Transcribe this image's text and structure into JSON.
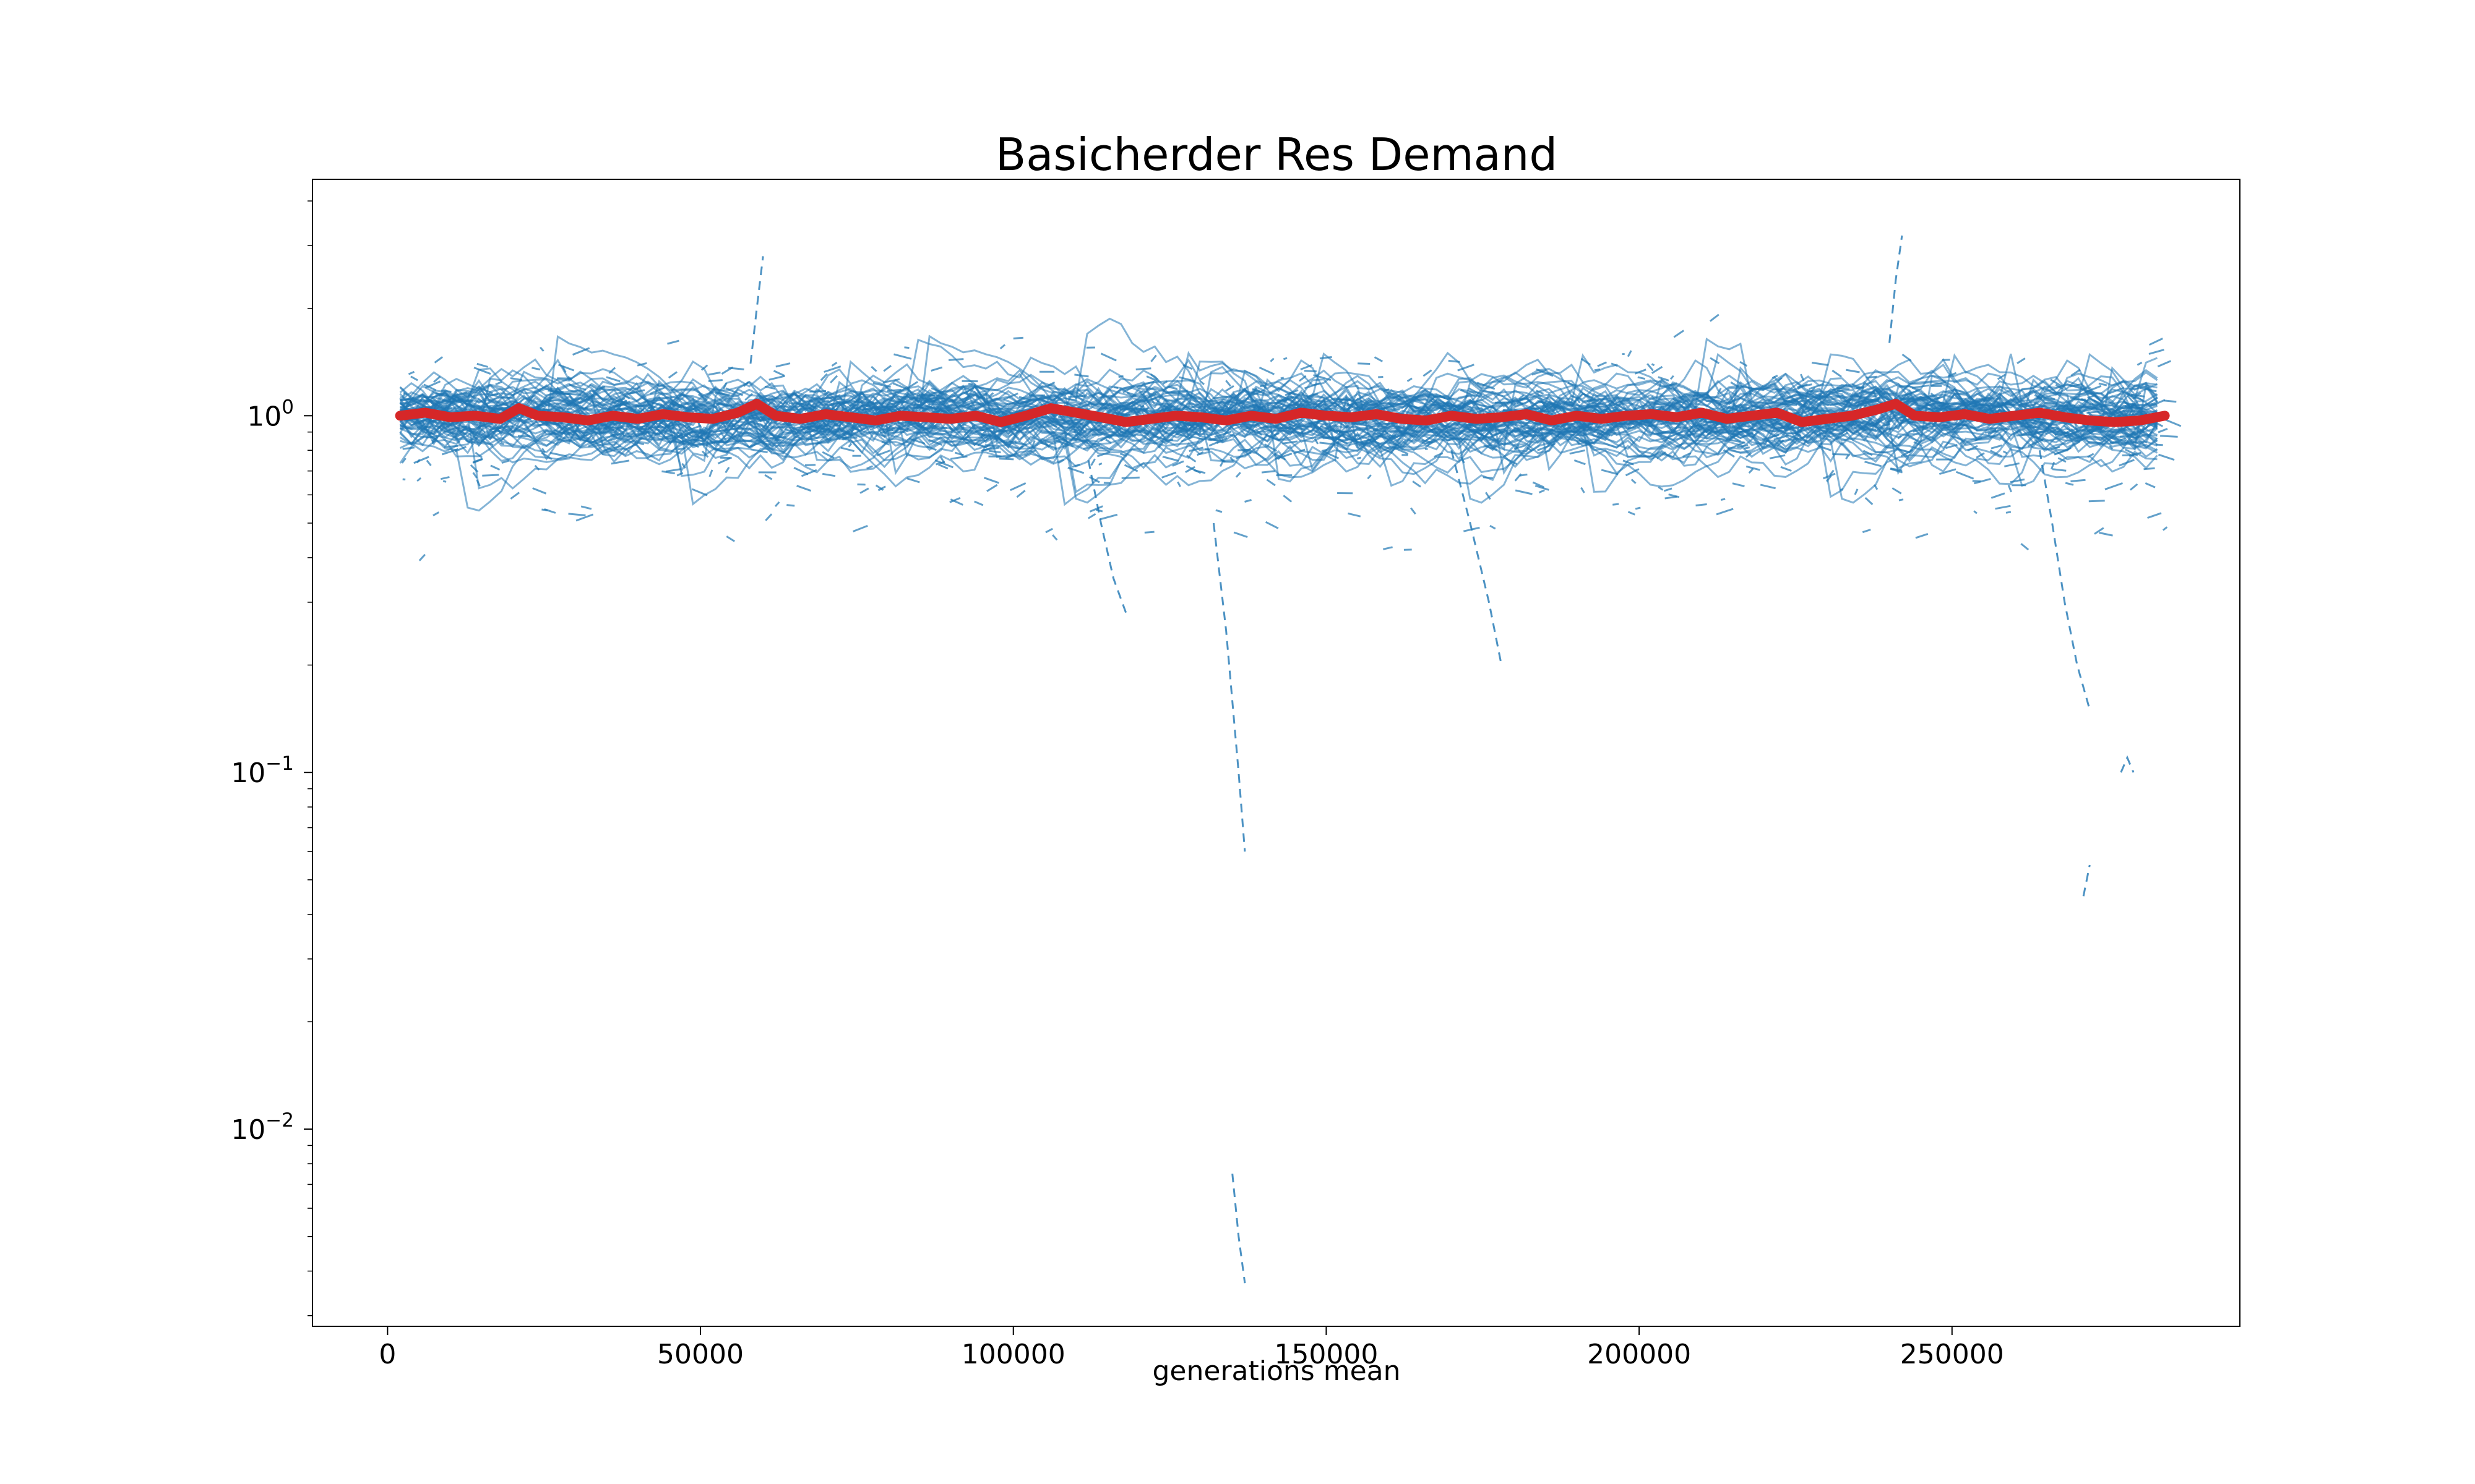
{
  "chart_data": {
    "type": "line",
    "title": "Basicherder Res Demand",
    "xlabel": "generations mean",
    "ylabel": "",
    "yscale": "log",
    "xlim": [
      -12000,
      296000
    ],
    "ylim": [
      0.0028,
      4.6
    ],
    "grid": false,
    "legend": "none",
    "x_ticks": [
      0,
      50000,
      100000,
      150000,
      200000,
      250000
    ],
    "x_tick_labels": [
      "0",
      "50000",
      "100000",
      "150000",
      "200000",
      "250000"
    ],
    "y_ticks": [
      {
        "value": 1,
        "base": "10",
        "exp": "0"
      },
      {
        "value": 0.1,
        "base": "10",
        "exp": "−1"
      },
      {
        "value": 0.01,
        "base": "10",
        "exp": "−2"
      }
    ],
    "colors": {
      "individual_runs": "#1f77b4",
      "mean": "#d62728"
    },
    "series": [
      {
        "role": "mean",
        "x": [
          2000,
          6000,
          10000,
          14000,
          18000,
          21000,
          24000,
          28000,
          32000,
          36000,
          40000,
          44000,
          48000,
          52000,
          56000,
          59000,
          62000,
          66000,
          70000,
          74000,
          78000,
          82000,
          86000,
          90000,
          94000,
          98000,
          102000,
          106000,
          110000,
          114000,
          118000,
          122000,
          126000,
          130000,
          134000,
          138000,
          142000,
          146000,
          150000,
          154000,
          158000,
          162000,
          166000,
          170000,
          174000,
          178000,
          182000,
          186000,
          190000,
          194000,
          198000,
          202000,
          206000,
          210000,
          214000,
          218000,
          222000,
          226000,
          230000,
          234000,
          238000,
          241000,
          244000,
          248000,
          252000,
          256000,
          260000,
          264000,
          268000,
          272000,
          276000,
          280000,
          284000
        ],
        "y": [
          1.0,
          1.02,
          0.99,
          1.0,
          0.98,
          1.05,
          1.0,
          0.99,
          0.97,
          1.0,
          0.98,
          1.01,
          0.99,
          0.98,
          1.02,
          1.08,
          1.0,
          0.98,
          1.01,
          0.99,
          0.97,
          1.0,
          0.99,
          0.98,
          1.0,
          0.96,
          1.0,
          1.05,
          1.02,
          0.99,
          0.96,
          0.98,
          1.0,
          0.99,
          0.97,
          1.0,
          0.98,
          1.02,
          1.0,
          0.99,
          1.01,
          0.98,
          0.97,
          1.0,
          0.98,
          0.99,
          1.01,
          0.97,
          1.0,
          0.98,
          1.0,
          1.01,
          0.99,
          1.02,
          0.98,
          1.0,
          1.02,
          0.96,
          0.98,
          1.0,
          1.04,
          1.08,
          1.0,
          0.99,
          1.01,
          0.98,
          1.0,
          1.02,
          0.99,
          0.97,
          0.96,
          0.97,
          1.0
        ]
      },
      {
        "role": "individual-run-outlier",
        "x": [
          58000,
          59000,
          60000
        ],
        "y": [
          1.4,
          2.0,
          2.8
        ]
      },
      {
        "role": "individual-run-outlier",
        "x": [
          240000,
          241000,
          242000
        ],
        "y": [
          1.6,
          2.4,
          3.2
        ]
      },
      {
        "role": "individual-run-outlier",
        "x": [
          132000,
          134000,
          136000,
          137000
        ],
        "y": [
          0.5,
          0.25,
          0.1,
          0.06
        ]
      },
      {
        "role": "individual-run-outlier",
        "x": [
          135000,
          136000,
          137000
        ],
        "y": [
          0.0075,
          0.005,
          0.0037
        ]
      },
      {
        "role": "individual-run-outlier",
        "x": [
          112000,
          114000,
          116000,
          118000
        ],
        "y": [
          0.75,
          0.5,
          0.35,
          0.28
        ]
      },
      {
        "role": "individual-run-outlier",
        "x": [
          170000,
          173000,
          176000,
          178000
        ],
        "y": [
          0.8,
          0.5,
          0.3,
          0.2
        ]
      },
      {
        "role": "individual-run-outlier",
        "x": [
          264000,
          266000,
          268000,
          270000,
          272000
        ],
        "y": [
          0.8,
          0.5,
          0.3,
          0.2,
          0.15
        ]
      },
      {
        "role": "individual-run-outlier",
        "x": [
          271000,
          272000
        ],
        "y": [
          0.045,
          0.055
        ]
      },
      {
        "role": "individual-run-outlier",
        "x": [
          277000,
          278000,
          279000
        ],
        "y": [
          0.1,
          0.11,
          0.1
        ]
      }
    ]
  }
}
